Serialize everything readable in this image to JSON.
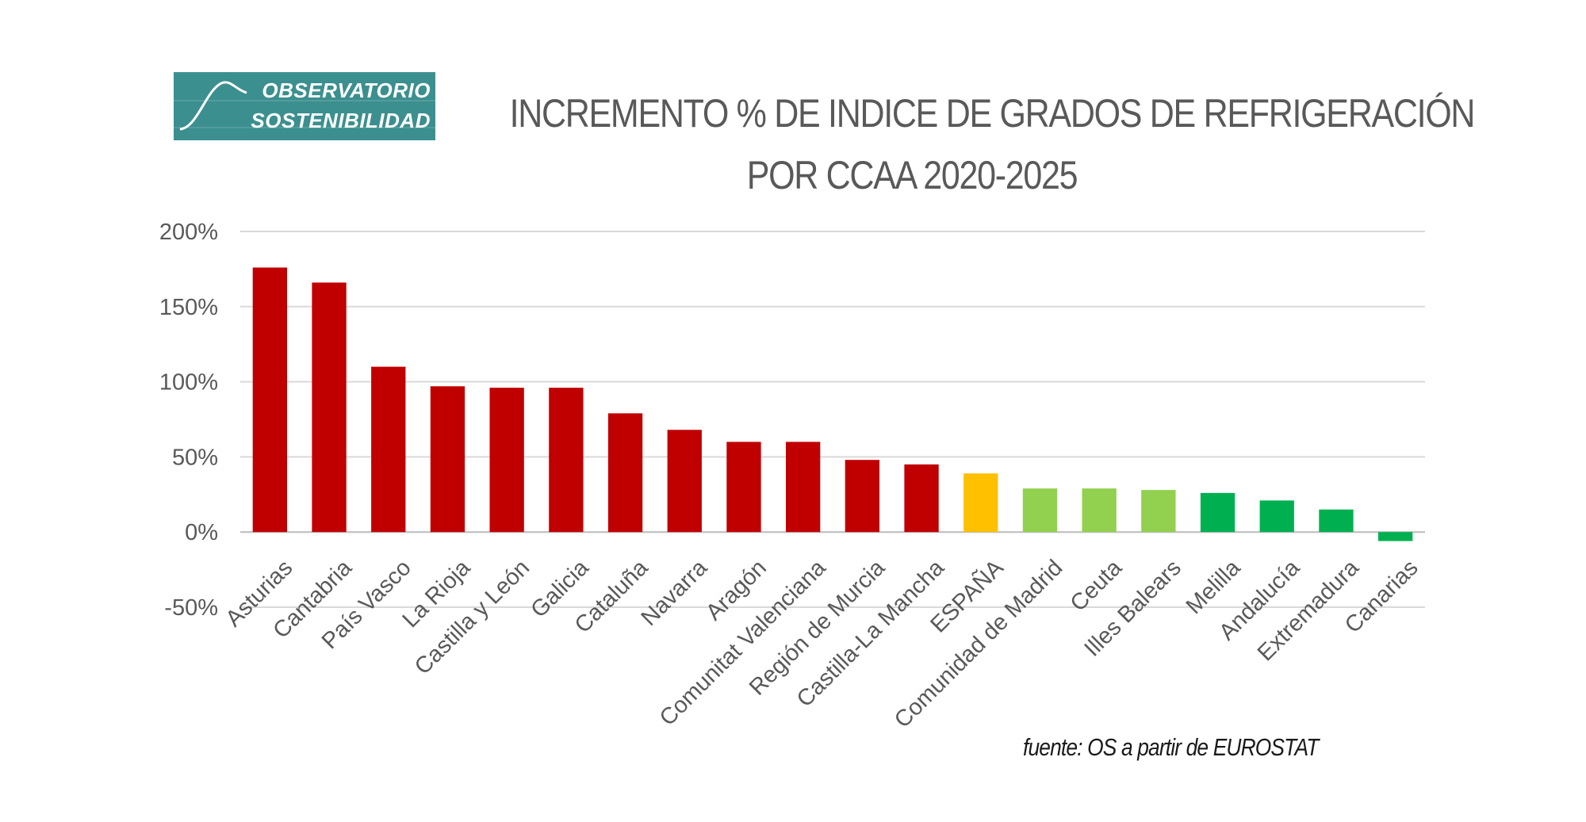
{
  "logo": {
    "line1": "OBSERVATORIO",
    "line2": "SOSTENIBILIDAD",
    "color": "#3c8f8f"
  },
  "title": {
    "line1": "INCREMENTO % DE INDICE DE GRADOS DE REFRIGERACIÓN",
    "line2": "POR CCAA 2020-2025"
  },
  "source": "fuente: OS a partir de EUROSTAT",
  "chart_data": {
    "type": "bar",
    "categories": [
      "Asturias",
      "Cantabria",
      "País Vasco",
      "La Rioja",
      "Castilla y León",
      "Galicia",
      "Cataluña",
      "Navarra",
      "Aragón",
      "Comunitat Valenciana",
      "Región de Murcia",
      "Castilla-La Mancha",
      "ESPAÑA",
      "Comunidad de Madrid",
      "Ceuta",
      "Illes Balears",
      "Melilla",
      "Andalucía",
      "Extremadura",
      "Canarias"
    ],
    "values": [
      176,
      166,
      110,
      97,
      96,
      96,
      79,
      68,
      60,
      60,
      48,
      45,
      39,
      29,
      29,
      28,
      26,
      21,
      15,
      -6
    ],
    "colors": [
      "#c00000",
      "#c00000",
      "#c00000",
      "#c00000",
      "#c00000",
      "#c00000",
      "#c00000",
      "#c00000",
      "#c00000",
      "#c00000",
      "#c00000",
      "#c00000",
      "#ffc000",
      "#92d050",
      "#92d050",
      "#92d050",
      "#00b050",
      "#00b050",
      "#00b050",
      "#00b050"
    ],
    "yticks": [
      "200%",
      "150%",
      "100%",
      "50%",
      "0%",
      "-50%"
    ],
    "ytick_values": [
      200,
      150,
      100,
      50,
      0,
      -50
    ],
    "ylim": [
      -50,
      200
    ],
    "grid": true,
    "legend": "none",
    "title": "INCREMENTO % DE INDICE DE GRADOS DE REFRIGERACIÓN POR CCAA 2020-2025",
    "xlabel": "",
    "ylabel": ""
  }
}
